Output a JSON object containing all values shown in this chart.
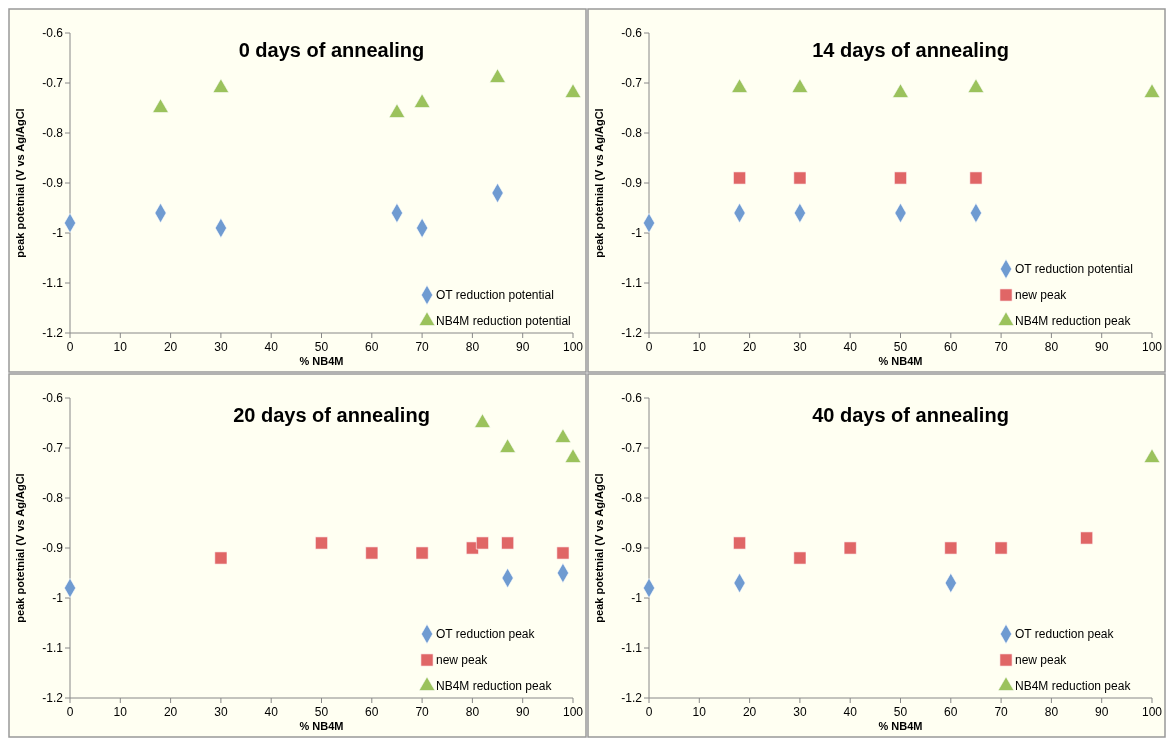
{
  "chart_data": [
    {
      "type": "scatter",
      "title": "0 days of annealing",
      "xlabel": "% NB4M",
      "ylabel": "peak potetnial (V vs Ag/AgCl",
      "xlim": [
        0,
        100
      ],
      "xticks": [
        0,
        10,
        20,
        30,
        40,
        50,
        60,
        70,
        80,
        90,
        100
      ],
      "ylim": [
        -1.2,
        -0.6
      ],
      "yticks": [
        -1.2,
        -1.1,
        -1,
        -0.9,
        -0.8,
        -0.7,
        -0.6
      ],
      "grid": false,
      "legend": "bottom right",
      "series": [
        {
          "name": "OT reduction potential",
          "color": "#6f9bd1",
          "marker": "diamond",
          "x": [
            0,
            18,
            30,
            65,
            70,
            85
          ],
          "values": [
            -0.98,
            -0.96,
            -0.99,
            -0.96,
            -0.99,
            -0.92
          ]
        },
        {
          "name": "NB4M reduction potential",
          "color": "#9bc25c",
          "marker": "triangle",
          "x": [
            18,
            30,
            65,
            70,
            85,
            100
          ],
          "values": [
            -0.75,
            -0.71,
            -0.76,
            -0.74,
            -0.69,
            -0.72
          ]
        }
      ]
    },
    {
      "type": "scatter",
      "title": "14 days of annealing",
      "xlabel": "% NB4M",
      "ylabel": "peak potetnial (V vs Ag/AgCl",
      "xlim": [
        0,
        100
      ],
      "xticks": [
        0,
        10,
        20,
        30,
        40,
        50,
        60,
        70,
        80,
        90,
        100
      ],
      "ylim": [
        -1.2,
        -0.6
      ],
      "yticks": [
        -1.2,
        -1.1,
        -1,
        -0.9,
        -0.8,
        -0.7,
        -0.6
      ],
      "grid": false,
      "legend": "bottom right",
      "series": [
        {
          "name": "OT reduction potential",
          "color": "#6f9bd1",
          "marker": "diamond",
          "x": [
            0,
            18,
            30,
            50,
            65
          ],
          "values": [
            -0.98,
            -0.96,
            -0.96,
            -0.96,
            -0.96
          ]
        },
        {
          "name": "new peak",
          "color": "#e06666",
          "marker": "square",
          "x": [
            18,
            30,
            50,
            65
          ],
          "values": [
            -0.89,
            -0.89,
            -0.89,
            -0.89
          ]
        },
        {
          "name": "NB4M reduction peak",
          "color": "#9bc25c",
          "marker": "triangle",
          "x": [
            18,
            30,
            50,
            65,
            100
          ],
          "values": [
            -0.71,
            -0.71,
            -0.72,
            -0.71,
            -0.72
          ]
        }
      ]
    },
    {
      "type": "scatter",
      "title": "20 days of annealing",
      "xlabel": "% NB4M",
      "ylabel": "peak potetnial (V vs Ag/AgCl",
      "xlim": [
        0,
        100
      ],
      "xticks": [
        0,
        10,
        20,
        30,
        40,
        50,
        60,
        70,
        80,
        90,
        100
      ],
      "ylim": [
        -1.2,
        -0.6
      ],
      "yticks": [
        -1.2,
        -1.1,
        -1,
        -0.9,
        -0.8,
        -0.7,
        -0.6
      ],
      "grid": false,
      "legend": "bottom right",
      "series": [
        {
          "name": "OT reduction peak",
          "color": "#6f9bd1",
          "marker": "diamond",
          "x": [
            0,
            87,
            98
          ],
          "values": [
            -0.98,
            -0.96,
            -0.95
          ]
        },
        {
          "name": "new peak",
          "color": "#e06666",
          "marker": "square",
          "x": [
            30,
            50,
            60,
            70,
            80,
            82,
            87,
            98
          ],
          "values": [
            -0.92,
            -0.89,
            -0.91,
            -0.91,
            -0.9,
            -0.89,
            -0.89,
            -0.91
          ]
        },
        {
          "name": "NB4M reduction peak",
          "color": "#9bc25c",
          "marker": "triangle",
          "x": [
            82,
            87,
            98,
            100
          ],
          "values": [
            -0.65,
            -0.7,
            -0.68,
            -0.72
          ]
        }
      ]
    },
    {
      "type": "scatter",
      "title": "40 days of annealing",
      "xlabel": "% NB4M",
      "ylabel": "peak potetnial (V vs Ag/AgCl",
      "xlim": [
        0,
        100
      ],
      "xticks": [
        0,
        10,
        20,
        30,
        40,
        50,
        60,
        70,
        80,
        90,
        100
      ],
      "ylim": [
        -1.2,
        -0.6
      ],
      "yticks": [
        -1.2,
        -1.1,
        -1,
        -0.9,
        -0.8,
        -0.7,
        -0.6
      ],
      "grid": false,
      "legend": "bottom right",
      "series": [
        {
          "name": "OT reduction peak",
          "color": "#6f9bd1",
          "marker": "diamond",
          "x": [
            0,
            18,
            60
          ],
          "values": [
            -0.98,
            -0.97,
            -0.97
          ]
        },
        {
          "name": "new peak",
          "color": "#e06666",
          "marker": "square",
          "x": [
            18,
            30,
            40,
            60,
            70,
            87
          ],
          "values": [
            -0.89,
            -0.92,
            -0.9,
            -0.9,
            -0.9,
            -0.88
          ]
        },
        {
          "name": "NB4M reduction peak",
          "color": "#9bc25c",
          "marker": "triangle",
          "x": [
            100
          ],
          "values": [
            -0.72
          ]
        }
      ]
    }
  ]
}
